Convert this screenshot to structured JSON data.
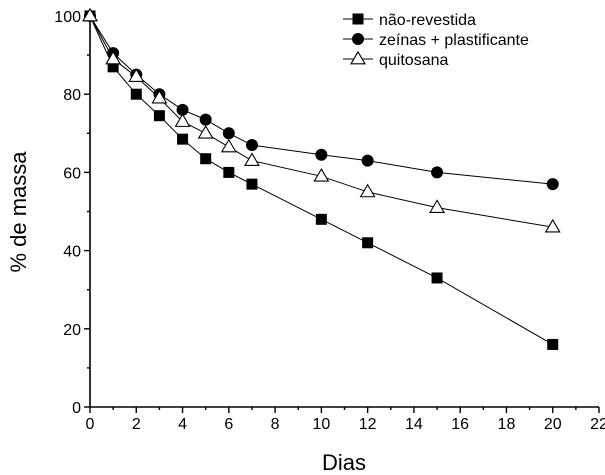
{
  "chart_data": {
    "type": "line",
    "xlabel": "Dias",
    "ylabel": "% de massa",
    "xlim": [
      0,
      22
    ],
    "ylim": [
      0,
      100
    ],
    "xticks": [
      0,
      2,
      4,
      6,
      8,
      10,
      12,
      14,
      16,
      18,
      20,
      22
    ],
    "yticks": [
      0,
      20,
      40,
      60,
      80,
      100
    ],
    "grid": false,
    "legend_position": "top-right",
    "series": [
      {
        "name": "não-revestida",
        "marker": "filled-square",
        "x": [
          0,
          1,
          2,
          3,
          4,
          5,
          6,
          7,
          10,
          12,
          15,
          20
        ],
        "y": [
          100,
          87,
          80,
          74.5,
          68.5,
          63.5,
          60,
          57,
          48,
          42,
          33,
          16
        ]
      },
      {
        "name": "zeínas + plastificante",
        "marker": "filled-circle",
        "x": [
          0,
          1,
          2,
          3,
          4,
          5,
          6,
          7,
          10,
          12,
          15,
          20
        ],
        "y": [
          100,
          90.5,
          85,
          80,
          76,
          73.5,
          70,
          67,
          64.5,
          63,
          60,
          57
        ]
      },
      {
        "name": "quitosana",
        "marker": "open-triangle",
        "x": [
          0,
          1,
          2,
          3,
          4,
          5,
          6,
          7,
          10,
          12,
          15,
          20
        ],
        "y": [
          100,
          89,
          84.5,
          79,
          73,
          70,
          66.5,
          63,
          59,
          55,
          51,
          46
        ]
      }
    ]
  }
}
